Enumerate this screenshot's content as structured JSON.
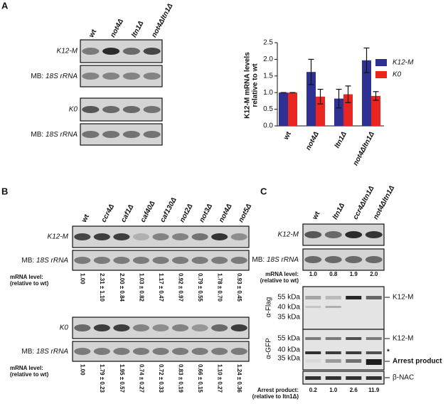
{
  "panel_a": {
    "label": "A",
    "lanes": [
      "wt",
      "not4Δ",
      "ltn1Δ",
      "not4Δltn1Δ"
    ],
    "probe_1": "K12-M",
    "probe_2": "K0",
    "loading": {
      "prefix": "MB:",
      "name": "18S rRNA"
    }
  },
  "chart_data": {
    "type": "bar",
    "y_label": [
      "K12-M mRNA levels",
      "relative to wt"
    ],
    "categories": [
      "wt",
      "not4Δ",
      "ltn1Δ",
      "not4Δltn1Δ"
    ],
    "series": [
      {
        "name": "K12-M",
        "color": "#2e3192",
        "values": [
          1.0,
          1.62,
          0.82,
          1.97
        ],
        "errors": [
          0,
          0.38,
          0.28,
          0.37
        ]
      },
      {
        "name": "K0",
        "color": "#e8251e",
        "values": [
          1.0,
          0.88,
          0.95,
          0.9
        ],
        "errors": [
          0,
          0.22,
          0.25,
          0.13
        ]
      }
    ],
    "ylim": [
      0,
      2.5
    ],
    "yticks": [
      {
        "value": 0,
        "label": "0.0"
      },
      0.5,
      {
        "value": 1,
        "label": "1.0"
      },
      1.5,
      {
        "value": 2,
        "label": "2.0"
      },
      2.5
    ],
    "legend": "right"
  },
  "panel_b": {
    "label": "B",
    "lanes": [
      "wt",
      "ccr4Δ",
      "caf1Δ",
      "caf40Δ",
      "caf130Δ",
      "not2Δ",
      "not3Δ",
      "not4Δ",
      "not5Δ"
    ],
    "probe_1": "K12-M",
    "probe_2": "K0",
    "loading": {
      "prefix": "MB:",
      "name": "18S rRNA"
    },
    "level_label": [
      "mRNA level:",
      "(relative to wt)"
    ],
    "levels_1": [
      "1.00",
      "2.31 ± 1.10",
      "2.00 ± 0.84",
      "1.03 ± 0.82",
      "1.17 ± 0.47",
      "0.92 ± 0.97",
      "0.79 ± 0.55",
      "1.78 ± 0.70",
      "0.93 ± 0.45"
    ],
    "levels_2": [
      "1.00",
      "1.79 ± 0.23",
      "1.95 ± 0.57",
      "0.74 ± 0.27",
      "0.72 ± 0.33",
      "0.83 ± 0.19",
      "0.66 ± 0.15",
      "1.10 ± 0.27",
      "1.24 ± 0.36"
    ]
  },
  "panel_c": {
    "label": "C",
    "lanes": [
      "wt",
      "ltn1Δ",
      "ccr4Δltn1Δ",
      "not4Δltn1Δ"
    ],
    "probe": "K12-M",
    "loading": {
      "prefix": "MB:",
      "name": "18S rRNA"
    },
    "level_label": "mRNA level:",
    "level_sub": "(relative to wt)",
    "levels": [
      "1.0",
      "0.8",
      "1.9",
      "2.0"
    ],
    "antibody_1": "α-Flag",
    "antibody_2": "α-GFP",
    "markers": [
      "55 kDa",
      "40 kDa",
      "35 kDa"
    ],
    "band_flag": "K12-M",
    "band_gfp": "K12-M",
    "star": "*",
    "arrest": "Arrest product",
    "loading_control": "β-NAC",
    "arrest_label": "Arrest product:",
    "arrest_sub": "(relative to ltn1Δ)",
    "arrest_levels": [
      "0.2",
      "1.0",
      "2.6",
      "11.9"
    ]
  }
}
